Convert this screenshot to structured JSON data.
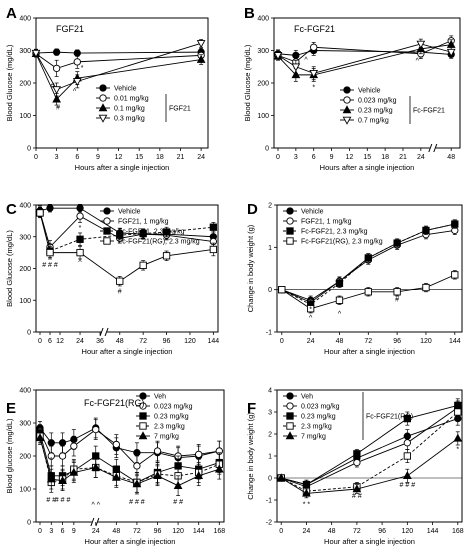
{
  "chart_data": [
    {
      "panel": "A",
      "type": "line",
      "title": "FGF21",
      "xlabel": "Hours after a single injection",
      "ylabel": "Blood Glucose (mg/dL)",
      "xlim": [
        0,
        25
      ],
      "ylim": [
        0,
        400
      ],
      "xticks": [
        0,
        3,
        6,
        9,
        12,
        15,
        18,
        21,
        24
      ],
      "yticks": [
        0,
        100,
        200,
        300,
        400
      ],
      "legend_group": "FGF21",
      "legend_position": "center-right",
      "series": [
        {
          "name": "Vehicle",
          "marker": "circle-filled",
          "dash": "solid",
          "x": [
            0,
            3,
            6,
            24
          ],
          "y": [
            292,
            295,
            292,
            295
          ],
          "err": [
            12,
            10,
            10,
            12
          ]
        },
        {
          "name": "0.01 mg/kg",
          "marker": "circle-open",
          "dash": "solid",
          "x": [
            0,
            3,
            6,
            24
          ],
          "y": [
            290,
            245,
            265,
            285
          ],
          "err": [
            10,
            25,
            20,
            15
          ]
        },
        {
          "name": "0.1 mg/kg",
          "marker": "triangle-filled",
          "dash": "solid",
          "x": [
            0,
            3,
            6,
            24
          ],
          "y": [
            290,
            150,
            215,
            272
          ],
          "err": [
            10,
            18,
            20,
            15
          ]
        },
        {
          "name": "0.3 mg/kg",
          "marker": "triangle-open",
          "dash": "solid",
          "x": [
            0,
            3,
            6,
            24
          ],
          "y": [
            292,
            180,
            205,
            322
          ],
          "err": [
            10,
            20,
            20,
            12
          ]
        }
      ],
      "annotations": [
        {
          "text": "#",
          "x": 2.4,
          "y": 185
        },
        {
          "text": "#",
          "x": 3.2,
          "y": 118
        },
        {
          "text": "*",
          "x": 6.7,
          "y": 240
        },
        {
          "text": "^",
          "x": 5.6,
          "y": 168
        }
      ]
    },
    {
      "panel": "B",
      "type": "line",
      "title": "Fc-FGF21",
      "xlabel": "Hours after a single injection",
      "ylabel": "Blood Glucose (mg/dL)",
      "xlim": [
        0,
        49
      ],
      "ylim": [
        0,
        400
      ],
      "axis_break": [
        25,
        46
      ],
      "xticks": [
        0,
        3,
        6,
        9,
        12,
        15,
        18,
        21,
        24,
        48
      ],
      "yticks": [
        0,
        100,
        200,
        300,
        400
      ],
      "legend_group": "Fc-FGF21",
      "legend_position": "center-right",
      "series": [
        {
          "name": "Vehicle",
          "marker": "circle-filled",
          "dash": "solid",
          "x": [
            0,
            3,
            6,
            24,
            48
          ],
          "y": [
            290,
            285,
            300,
            295,
            288
          ],
          "err": [
            12,
            15,
            15,
            15,
            12
          ]
        },
        {
          "name": "0.023 mg/kg",
          "marker": "circle-open",
          "dash": "solid",
          "x": [
            0,
            3,
            6,
            24,
            48
          ],
          "y": [
            285,
            265,
            310,
            290,
            330
          ],
          "err": [
            12,
            18,
            15,
            15,
            15
          ]
        },
        {
          "name": "0.23 mg/kg",
          "marker": "triangle-filled",
          "dash": "solid",
          "x": [
            0,
            3,
            6,
            24,
            48
          ],
          "y": [
            282,
            225,
            225,
            305,
            318
          ],
          "err": [
            12,
            20,
            20,
            15,
            15
          ]
        },
        {
          "name": "0.7 mg/kg",
          "marker": "triangle-open",
          "dash": "solid",
          "x": [
            0,
            3,
            6,
            24,
            48
          ],
          "y": [
            285,
            250,
            230,
            320,
            295
          ],
          "err": [
            12,
            20,
            20,
            15,
            15
          ]
        }
      ],
      "annotations": [
        {
          "text": "*",
          "x": 6,
          "y": 180
        },
        {
          "text": "^",
          "x": 4.7,
          "y": 265
        },
        {
          "text": "*",
          "x": 22.8,
          "y": 285
        },
        {
          "text": "^",
          "x": 23.4,
          "y": 262
        }
      ]
    },
    {
      "panel": "C",
      "type": "line",
      "xlabel": "Hour after a single injection",
      "ylabel": "Blood Glucose (mg/dL)",
      "xlim": [
        0,
        148
      ],
      "ylim": [
        0,
        400
      ],
      "axis_break": [
        36,
        36
      ],
      "xticks": [
        0,
        6,
        12,
        24,
        36,
        48,
        72,
        96,
        120,
        144
      ],
      "yticks": [
        0,
        100,
        200,
        300,
        400
      ],
      "legend_position": "top-right",
      "series": [
        {
          "name": "Vehicle",
          "marker": "circle-filled",
          "dash": "solid",
          "x": [
            0,
            6,
            24,
            48,
            72,
            96,
            144
          ],
          "y": [
            382,
            390,
            390,
            312,
            308,
            308,
            300
          ],
          "err": [
            15,
            12,
            12,
            15,
            15,
            15,
            15
          ]
        },
        {
          "name": "FGF21, 1 mg/kg",
          "marker": "circle-open",
          "dash": "solid",
          "x": [
            0,
            6,
            24,
            48,
            72,
            96,
            144
          ],
          "y": [
            378,
            268,
            365,
            295,
            308,
            305,
            285
          ],
          "err": [
            15,
            20,
            20,
            15,
            15,
            15,
            15
          ]
        },
        {
          "name": "Fc-FGF21, 2.3 mg/kg",
          "marker": "square-filled",
          "dash": "dashed",
          "x": [
            0,
            6,
            24,
            48,
            72,
            96,
            144
          ],
          "y": [
            375,
            255,
            292,
            305,
            310,
            315,
            330
          ],
          "err": [
            15,
            20,
            20,
            15,
            15,
            15,
            15
          ]
        },
        {
          "name": "Fc-FGF21(RG), 2.3 mg/kg",
          "marker": "square-open",
          "dash": "solid",
          "x": [
            0,
            6,
            24,
            48,
            72,
            96,
            144
          ],
          "y": [
            375,
            250,
            250,
            160,
            210,
            240,
            260
          ],
          "err": [
            15,
            20,
            20,
            15,
            15,
            15,
            20
          ]
        }
      ],
      "annotations": [
        {
          "text": "# # #",
          "x": 6,
          "y": 205
        },
        {
          "text": "*",
          "x": 24,
          "y": 322
        },
        {
          "text": "^",
          "x": 24,
          "y": 212
        },
        {
          "text": "#",
          "x": 48,
          "y": 122
        }
      ]
    },
    {
      "panel": "D",
      "type": "line",
      "xlabel": "Hour after a single injection",
      "ylabel": "Change in body weight (g)",
      "xlim": [
        -4,
        150
      ],
      "ylim": [
        -1,
        2
      ],
      "xticks": [
        0,
        24,
        48,
        72,
        96,
        120,
        144
      ],
      "yticks": [
        -1,
        0,
        1,
        2
      ],
      "legend_position": "top-left",
      "series": [
        {
          "name": "Vehicle",
          "marker": "circle-filled",
          "dash": "solid",
          "x": [
            0,
            24,
            48,
            72,
            96,
            120,
            144
          ],
          "y": [
            0,
            -0.25,
            0.2,
            0.75,
            1.1,
            1.4,
            1.55
          ],
          "err": [
            0.05,
            0.1,
            0.1,
            0.1,
            0.1,
            0.1,
            0.1
          ]
        },
        {
          "name": "FGF21, 1 mg/kg",
          "marker": "circle-open",
          "dash": "solid",
          "x": [
            0,
            24,
            48,
            72,
            96,
            120,
            144
          ],
          "y": [
            0,
            -0.3,
            0.2,
            0.7,
            1.05,
            1.3,
            1.4
          ],
          "err": [
            0.05,
            0.1,
            0.1,
            0.1,
            0.1,
            0.1,
            0.1
          ]
        },
        {
          "name": "Fc-FGF21, 2.3 mg/kg",
          "marker": "square-filled",
          "dash": "dashed",
          "x": [
            0,
            24,
            48,
            72,
            96,
            120,
            144
          ],
          "y": [
            0,
            -0.35,
            0.15,
            0.75,
            1.1,
            1.4,
            1.55
          ],
          "err": [
            0.05,
            0.1,
            0.1,
            0.1,
            0.1,
            0.1,
            0.1
          ]
        },
        {
          "name": "Fc-FGF21(RG), 2.3 mg/kg",
          "marker": "square-open",
          "dash": "solid",
          "x": [
            0,
            24,
            48,
            72,
            96,
            120,
            144
          ],
          "y": [
            0,
            -0.45,
            -0.25,
            -0.05,
            -0.05,
            0.05,
            0.35
          ],
          "err": [
            0.05,
            0.1,
            0.1,
            0.1,
            0.1,
            0.1,
            0.1
          ]
        }
      ],
      "annotations": [
        {
          "text": "*",
          "x": 24,
          "y": -0.52
        },
        {
          "text": "^",
          "x": 24,
          "y": -0.72
        },
        {
          "text": "^",
          "x": 48,
          "y": -0.62
        },
        {
          "text": "#",
          "x": 96,
          "y": -0.28
        }
      ]
    },
    {
      "panel": "E",
      "type": "line",
      "title": "Fc-FGF21(RG)",
      "xlabel": "Hour after a single injection",
      "ylabel": "Blood glucose (mg/dL)",
      "xlim": [
        0,
        168
      ],
      "ylim": [
        0,
        400
      ],
      "axis_break": [
        13,
        23
      ],
      "xticks": [
        0,
        3,
        6,
        9,
        24,
        48,
        72,
        96,
        120,
        144,
        168
      ],
      "yticks": [
        0,
        100,
        200,
        300,
        400
      ],
      "legend_position": "top-right",
      "series": [
        {
          "name": "Veh",
          "marker": "circle-filled",
          "dash": "solid",
          "x": [
            0,
            3,
            6,
            9,
            24,
            48,
            72,
            96,
            120,
            144,
            168
          ],
          "y": [
            285,
            240,
            240,
            250,
            285,
            225,
            210,
            210,
            195,
            200,
            215
          ],
          "err": [
            20,
            30,
            30,
            30,
            30,
            30,
            30,
            30,
            30,
            30,
            30
          ]
        },
        {
          "name": "0.023 mg/kg",
          "marker": "circle-open",
          "dash": "solid",
          "x": [
            0,
            3,
            6,
            9,
            24,
            48,
            72,
            96,
            120,
            144,
            168
          ],
          "y": [
            275,
            200,
            200,
            230,
            280,
            235,
            170,
            215,
            200,
            205,
            215
          ],
          "err": [
            20,
            30,
            30,
            30,
            30,
            30,
            30,
            30,
            30,
            30,
            30
          ]
        },
        {
          "name": "0.23 mg/kg",
          "marker": "square-filled",
          "dash": "solid",
          "x": [
            0,
            3,
            6,
            9,
            24,
            48,
            72,
            96,
            120,
            144,
            168
          ],
          "y": [
            270,
            140,
            140,
            155,
            200,
            160,
            120,
            150,
            170,
            160,
            180
          ],
          "err": [
            20,
            30,
            30,
            30,
            30,
            30,
            30,
            30,
            30,
            30,
            30
          ]
        },
        {
          "name": "2.3 mg/kg",
          "marker": "square-open",
          "dash": "dashed",
          "x": [
            0,
            3,
            6,
            9,
            24,
            48,
            72,
            96,
            120,
            144,
            168
          ],
          "y": [
            260,
            120,
            130,
            160,
            165,
            140,
            120,
            145,
            140,
            150,
            175
          ],
          "err": [
            20,
            30,
            30,
            30,
            30,
            30,
            30,
            30,
            30,
            30,
            30
          ]
        },
        {
          "name": "7 mg/kg",
          "marker": "triangle-filled",
          "dash": "solid",
          "x": [
            0,
            3,
            6,
            9,
            24,
            48,
            72,
            96,
            120,
            144,
            168
          ],
          "y": [
            255,
            130,
            125,
            150,
            165,
            135,
            115,
            140,
            110,
            140,
            160
          ],
          "err": [
            20,
            30,
            30,
            30,
            30,
            30,
            30,
            30,
            30,
            30,
            30
          ]
        }
      ],
      "annotations": [
        {
          "text": "# #",
          "x": 3,
          "y": 60
        },
        {
          "text": "# # #",
          "x": 6,
          "y": 60
        },
        {
          "text": "^",
          "x": 3,
          "y": 180
        },
        {
          "text": "^ ^",
          "x": 24,
          "y": 45
        },
        {
          "text": "# # #",
          "x": 72,
          "y": 55
        },
        {
          "text": "# #",
          "x": 120,
          "y": 55
        }
      ]
    },
    {
      "panel": "F",
      "type": "line",
      "xlabel": "Hour after a single injection",
      "ylabel": "Change in body weight (g)",
      "xlim": [
        -4,
        172
      ],
      "ylim": [
        -2,
        4
      ],
      "xticks": [
        0,
        24,
        48,
        72,
        96,
        120,
        144,
        168
      ],
      "yticks": [
        -2,
        -1,
        0,
        1,
        2,
        3,
        4
      ],
      "legend_group": "Fc-FGF21(RG)",
      "legend_position": "top-left",
      "series": [
        {
          "name": "Veh",
          "marker": "circle-filled",
          "dash": "solid",
          "x": [
            0,
            24,
            72,
            120,
            168
          ],
          "y": [
            0,
            -0.3,
            0.9,
            1.9,
            2.7
          ],
          "err": [
            0.05,
            0.2,
            0.2,
            0.3,
            0.3
          ]
        },
        {
          "name": "0.023 mg/kg",
          "marker": "circle-open",
          "dash": "solid",
          "x": [
            0,
            24,
            72,
            120,
            168
          ],
          "y": [
            0,
            -0.4,
            0.7,
            1.6,
            3.2
          ],
          "err": [
            0.05,
            0.2,
            0.2,
            0.3,
            0.3
          ]
        },
        {
          "name": "0.23 mg/kg",
          "marker": "square-filled",
          "dash": "solid",
          "x": [
            0,
            24,
            72,
            120,
            168
          ],
          "y": [
            0,
            -0.3,
            1.1,
            2.7,
            3.3
          ],
          "err": [
            0.05,
            0.2,
            0.2,
            0.3,
            0.3
          ]
        },
        {
          "name": "2.3 mg/kg",
          "marker": "square-open",
          "dash": "dashed",
          "x": [
            0,
            24,
            72,
            120,
            168
          ],
          "y": [
            0,
            -0.6,
            -0.4,
            1.0,
            3.0
          ],
          "err": [
            0.05,
            0.2,
            0.2,
            0.3,
            0.3
          ]
        },
        {
          "name": "7 mg/kg",
          "marker": "triangle-filled",
          "dash": "solid",
          "x": [
            0,
            24,
            72,
            120,
            168
          ],
          "y": [
            0,
            -0.7,
            -0.5,
            0.1,
            1.8
          ],
          "err": [
            0.05,
            0.2,
            0.2,
            0.3,
            0.3
          ]
        }
      ],
      "annotations": [
        {
          "text": "* *",
          "x": 24,
          "y": -1.3
        },
        {
          "text": "# #",
          "x": 72,
          "y": -0.9
        },
        {
          "text": "# # #",
          "x": 120,
          "y": -0.4
        },
        {
          "text": "*",
          "x": 168,
          "y": 1.2
        }
      ]
    }
  ]
}
